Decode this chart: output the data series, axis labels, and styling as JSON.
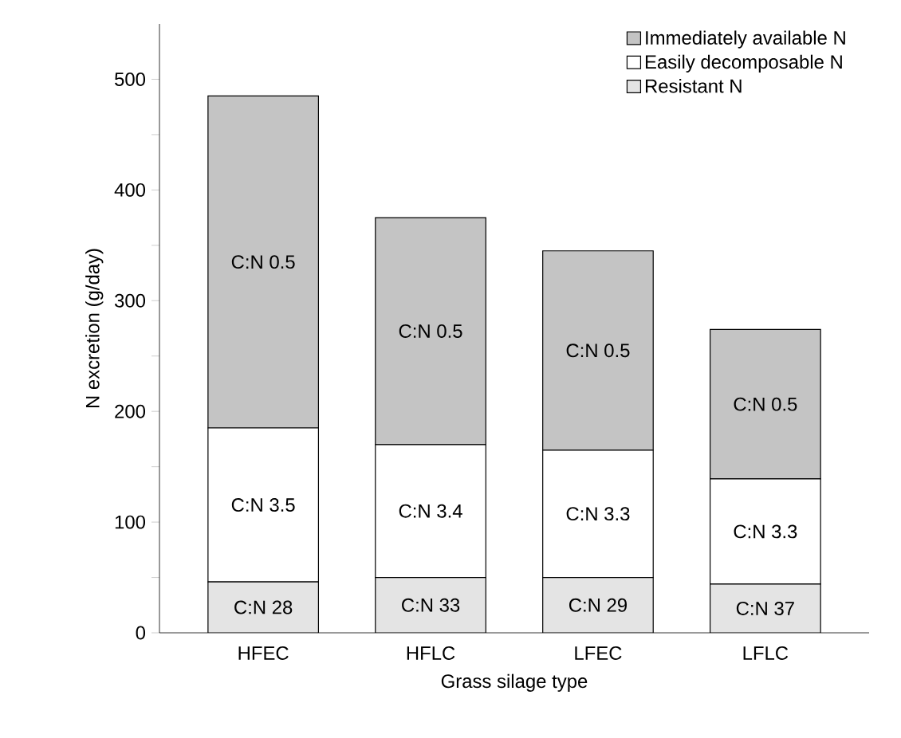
{
  "chart_data": {
    "type": "bar",
    "stacked": true,
    "categories": [
      "HFEC",
      "HFLC",
      "LFEC",
      "LFLC"
    ],
    "xlabel": "Grass silage type",
    "ylabel": "N excretion (g/day)",
    "series": [
      {
        "name": "Resistant N",
        "color": "#e4e4e4",
        "values": [
          46,
          50,
          50,
          44
        ],
        "value_labels": [
          "C:N 28",
          "C:N 33",
          "C:N 29",
          "C:N 37"
        ]
      },
      {
        "name": "Easily decomposable N",
        "color": "#ffffff",
        "values": [
          139,
          120,
          115,
          95
        ],
        "value_labels": [
          "C:N 3.5",
          "C:N 3.4",
          "C:N 3.3",
          "C:N 3.3"
        ]
      },
      {
        "name": "Immediately available N",
        "color": "#c4c4c4",
        "values": [
          300,
          205,
          180,
          135
        ],
        "value_labels": [
          "C:N 0.5",
          "C:N 0.5",
          "C:N 0.5",
          "C:N 0.5"
        ]
      }
    ],
    "ylim": [
      0,
      550
    ],
    "yticks": [
      0,
      {
        "value": 50,
        "label": null
      },
      100,
      {
        "value": 150,
        "label": null
      },
      200,
      {
        "value": 250,
        "label": null
      },
      300,
      {
        "value": 350,
        "label": null
      },
      400,
      {
        "value": 450,
        "label": null
      },
      500
    ],
    "legend": "top right",
    "grid": false
  }
}
